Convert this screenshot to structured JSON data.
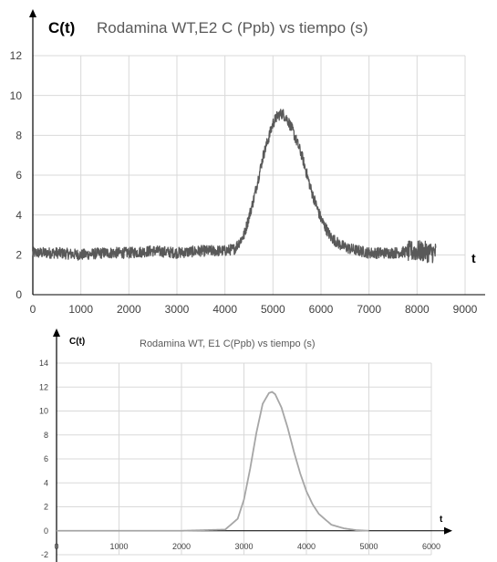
{
  "chart_data": [
    {
      "type": "line",
      "title": "Rodamina WT,E2  C (Ppb) vs tiempo (s)",
      "ylabel": "C(t)",
      "xlabel": "t",
      "xlim": [
        0,
        9000
      ],
      "ylim": [
        0,
        12
      ],
      "x_ticks": [
        "0",
        "1000",
        "2000",
        "3000",
        "4000",
        "5000",
        "6000",
        "7000",
        "8000",
        "9000"
      ],
      "y_ticks": [
        "0",
        "2",
        "4",
        "6",
        "8",
        "10",
        "12"
      ],
      "grid": true,
      "series_color": "#595959",
      "noisy": true,
      "x": [
        0,
        500,
        1000,
        1500,
        2000,
        2500,
        3000,
        3500,
        4000,
        4200,
        4400,
        4600,
        4800,
        5000,
        5100,
        5200,
        5300,
        5400,
        5600,
        5800,
        6000,
        6200,
        6400,
        6600,
        6800,
        7000,
        7500,
        8000,
        8400
      ],
      "values": [
        2.1,
        2.1,
        2.0,
        2.1,
        2.1,
        2.2,
        2.1,
        2.2,
        2.2,
        2.3,
        3.0,
        4.8,
        7.0,
        8.6,
        9.0,
        9.1,
        8.8,
        8.3,
        7.0,
        5.2,
        3.8,
        2.9,
        2.5,
        2.3,
        2.2,
        2.1,
        2.1,
        2.2,
        2.1
      ]
    },
    {
      "type": "line",
      "title": "Rodamina WT, E1  C(Ppb) vs tiempo (s)",
      "ylabel": "C(t)",
      "xlabel": "t",
      "xlim": [
        0,
        6000
      ],
      "ylim": [
        -2,
        14
      ],
      "x_ticks": [
        "0",
        "1000",
        "2000",
        "3000",
        "4000",
        "5000",
        "6000"
      ],
      "y_ticks": [
        "-2",
        "0",
        "2",
        "4",
        "6",
        "8",
        "10",
        "12",
        "14"
      ],
      "grid": true,
      "series_color": "#a6a6a6",
      "noisy": false,
      "x": [
        0,
        1000,
        2000,
        2700,
        2900,
        3000,
        3100,
        3200,
        3300,
        3400,
        3450,
        3500,
        3600,
        3700,
        3800,
        3900,
        4000,
        4100,
        4200,
        4400,
        4600,
        4800,
        5000
      ],
      "values": [
        0,
        0,
        0,
        0.1,
        1.0,
        2.6,
        5.2,
        8.2,
        10.6,
        11.5,
        11.6,
        11.4,
        10.3,
        8.6,
        6.6,
        4.8,
        3.3,
        2.2,
        1.4,
        0.5,
        0.2,
        0.05,
        0
      ]
    }
  ]
}
